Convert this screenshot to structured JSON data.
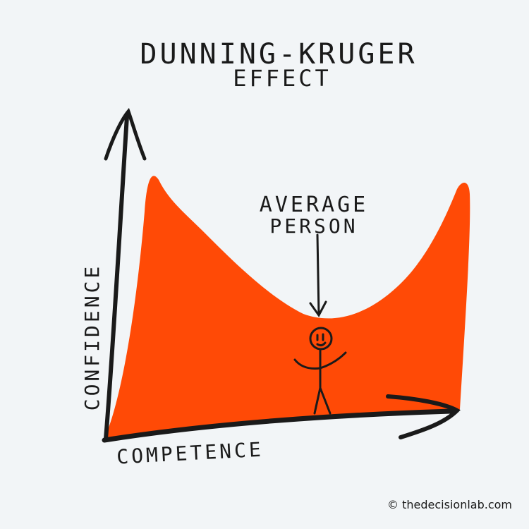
{
  "title": {
    "line1": "DUNNING-KRUGER",
    "line2": "EFFECT"
  },
  "annotation": {
    "line1": "AVERAGE",
    "line2": "PERSON"
  },
  "axes": {
    "y_label": "CONFIDENCE",
    "x_label": "COMPETENCE"
  },
  "watermark": "© thedecisionlab.com",
  "colors": {
    "curve_fill": "#ff4a06",
    "background": "#f2f5f7",
    "ink": "#1a1a1a"
  }
}
